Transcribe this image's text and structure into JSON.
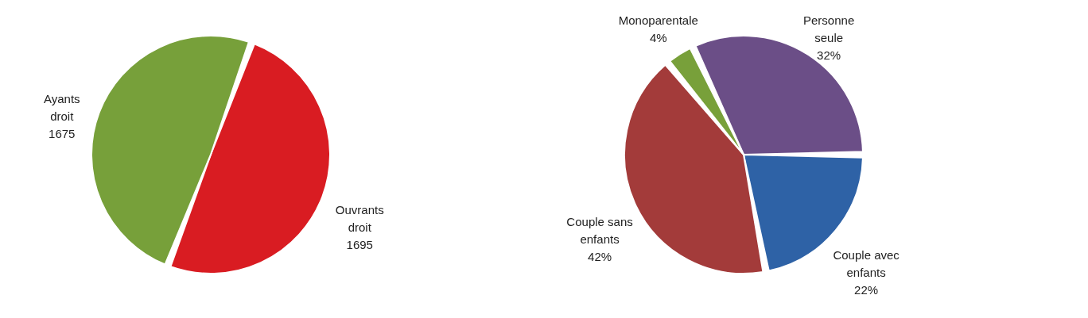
{
  "chart_data": [
    {
      "type": "pie",
      "categories": [
        "Ouvrants droit",
        "Ayants droit"
      ],
      "values": [
        1695,
        1675
      ],
      "colors": [
        "#d91c22",
        "#77a03a"
      ],
      "data_labels": true
    },
    {
      "type": "pie",
      "categories": [
        "Personne seule",
        "Couple avec enfants",
        "Couple sans enfants",
        "Monoparentale"
      ],
      "values": [
        32,
        22,
        42,
        4
      ],
      "colors": [
        "#6b4e87",
        "#2e62a6",
        "#a33b3a",
        "#78a03a"
      ],
      "value_labels": [
        "32%",
        "22%",
        "42%",
        "4%"
      ]
    }
  ]
}
